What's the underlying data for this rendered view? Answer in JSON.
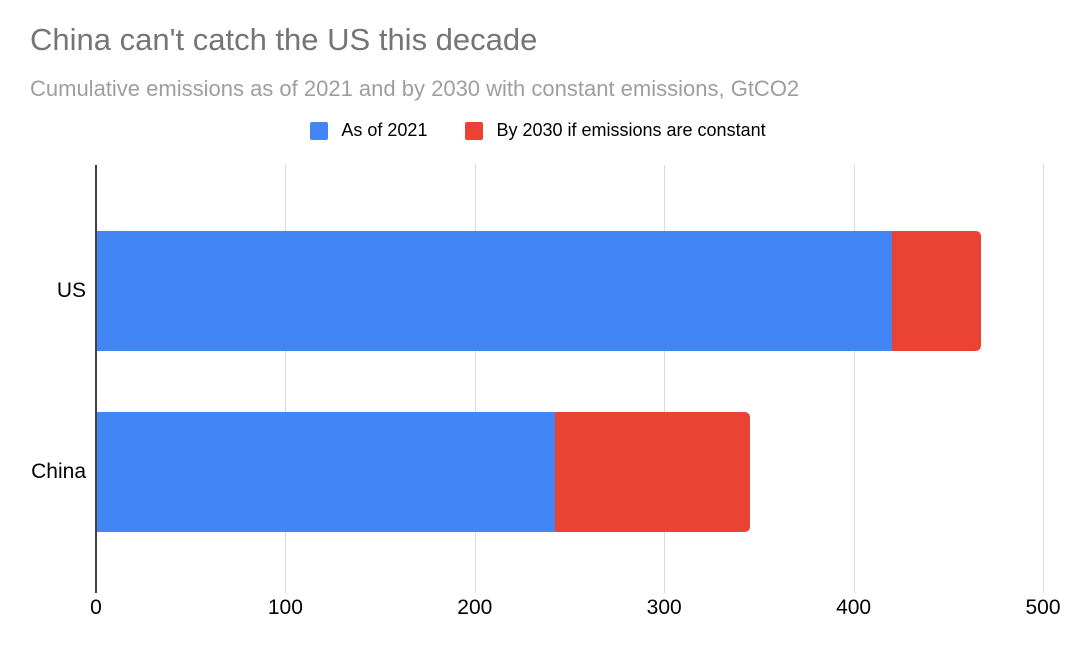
{
  "header": {
    "title": "China can't catch the US this decade",
    "subtitle": "Cumulative emissions as of 2021 and by 2030 with constant emissions, GtCO2"
  },
  "colors": {
    "series_blue": "#4285F4",
    "series_red": "#EA4335",
    "title_gray": "#757575",
    "subtitle_gray": "#9E9E9E",
    "gridline": "#DADADA",
    "axis_line": "#424242",
    "label_black": "#000000"
  },
  "chart_data": {
    "type": "bar",
    "orientation": "horizontal",
    "stacked": true,
    "title": "China can't catch the US this decade",
    "subtitle": "Cumulative emissions as of 2021 and by 2030 with constant emissions, GtCO2",
    "unit_label": "GtCO2",
    "categories": [
      "US",
      "China"
    ],
    "series": [
      {
        "name": "As of 2021",
        "color": "#4285F4",
        "values": [
          420,
          242
        ]
      },
      {
        "name": "By 2030 if emissions are constant",
        "color": "#EA4335",
        "values": [
          47,
          103
        ]
      }
    ],
    "totals_by_2030": [
      467,
      345
    ],
    "xlabel": "",
    "ylabel": "",
    "xlim": [
      0,
      500
    ],
    "xticks": [
      0,
      100,
      200,
      300,
      400,
      500
    ],
    "grid": true,
    "legend_position": "top-center"
  }
}
